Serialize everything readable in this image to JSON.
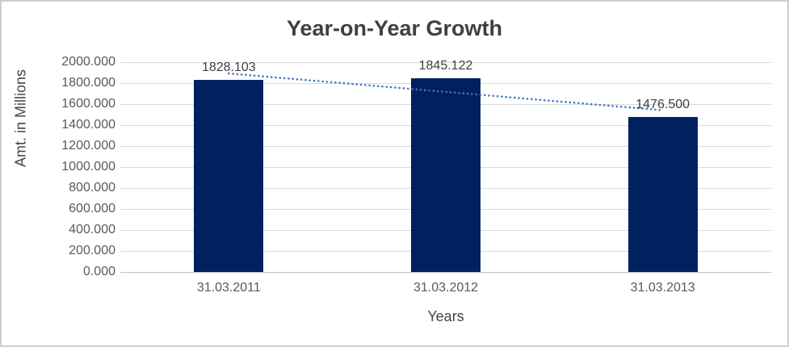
{
  "chart_data": {
    "type": "bar",
    "title": "Year-on-Year Growth",
    "xlabel": "Years",
    "ylabel": "Amt. in Millions",
    "categories": [
      "31.03.2011",
      "31.03.2012",
      "31.03.2013"
    ],
    "values": [
      1828.103,
      1845.122,
      1476.5
    ],
    "data_labels": [
      "1828.103",
      "1845.122",
      "1476.500"
    ],
    "ylim": [
      0,
      2000
    ],
    "ytick_step": 200,
    "ytick_labels": [
      "0.000",
      "200.000",
      "400.000",
      "600.000",
      "800.000",
      "1000.000",
      "1200.000",
      "1400.000",
      "1600.000",
      "1800.000",
      "2000.000"
    ],
    "grid": true,
    "legend": "none",
    "bar_color": "#002060",
    "trendline": {
      "style": "dotted",
      "color": "#4472c4",
      "start_value": 1892,
      "end_value": 1541
    }
  },
  "colors": {
    "title_text": "#3f3f3f",
    "axis_title_text": "#444444",
    "tick_text": "#595959",
    "gridline": "#d9d9d9",
    "axis_line": "#bfbfbf",
    "frame_border": "#cfcdcd",
    "background": "#ffffff"
  }
}
